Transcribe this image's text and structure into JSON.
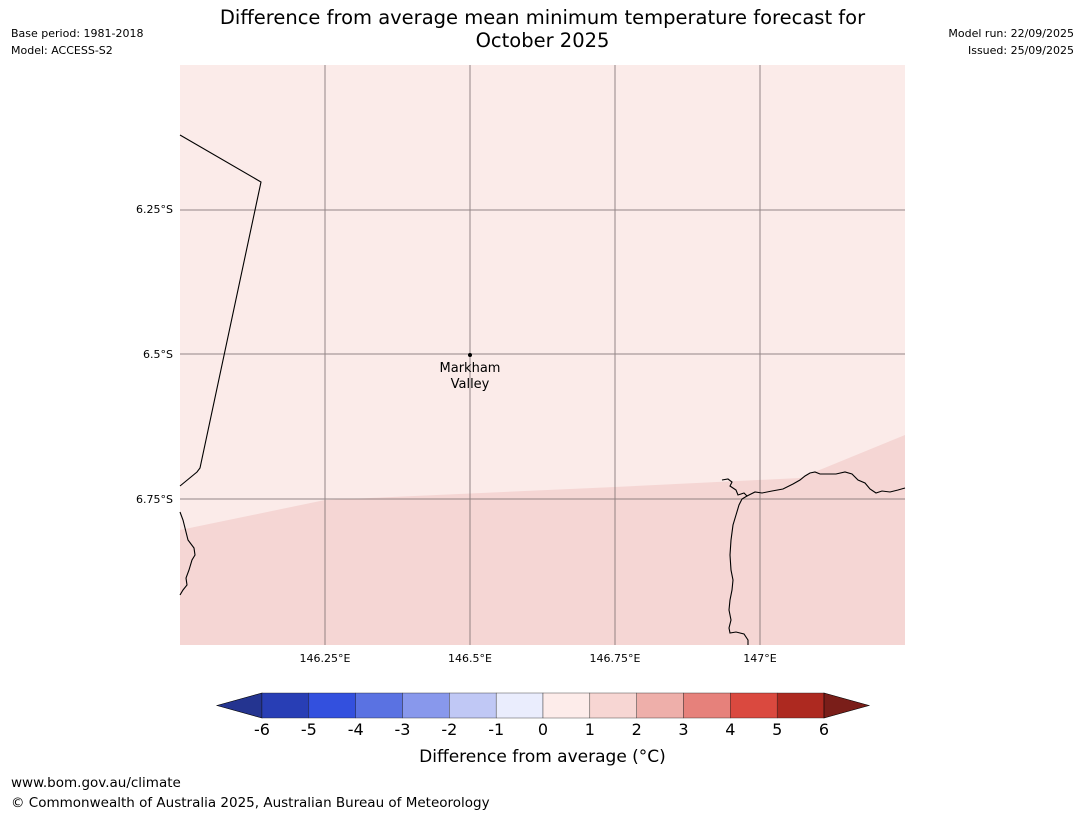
{
  "header": {
    "base_period": "Base period: 1981-2018",
    "model": "Model: ACCESS-S2",
    "model_run": "Model run: 22/09/2025",
    "issued": "Issued: 25/09/2025",
    "title_line1": "Difference from average mean minimum temperature forecast for",
    "title_line2": "October 2025"
  },
  "map": {
    "latitudes": [
      "6.25°S",
      "6.5°S",
      "6.75°S"
    ],
    "longitudes": [
      "146.25°E",
      "146.5°E",
      "146.75°E",
      "147°E"
    ],
    "place": {
      "name_line1": "Markham",
      "name_line2": "Valley"
    },
    "fill_colors": {
      "zone_0_to_1": "#fbebe9",
      "zone_1_to_2": "#f5d6d4"
    },
    "grid_color": "#7a6e6e",
    "coast_color": "#000000"
  },
  "colorbar": {
    "title": "Difference from average (°C)",
    "ticks": [
      "-6",
      "-5",
      "-4",
      "-3",
      "-2",
      "-1",
      "0",
      "1",
      "2",
      "3",
      "4",
      "5",
      "6"
    ],
    "colors": [
      "#243490",
      "#283eb5",
      "#3350de",
      "#5a72e2",
      "#8898ec",
      "#c0c8f5",
      "#eaedfd",
      "#fdecea",
      "#f7d6d3",
      "#eeafaa",
      "#e6817b",
      "#da493f",
      "#ad2920",
      "#7a1e19"
    ]
  },
  "footer": {
    "url": "www.bom.gov.au/climate",
    "copyright": "© Commonwealth of Australia 2025, Australian Bureau of Meteorology"
  }
}
